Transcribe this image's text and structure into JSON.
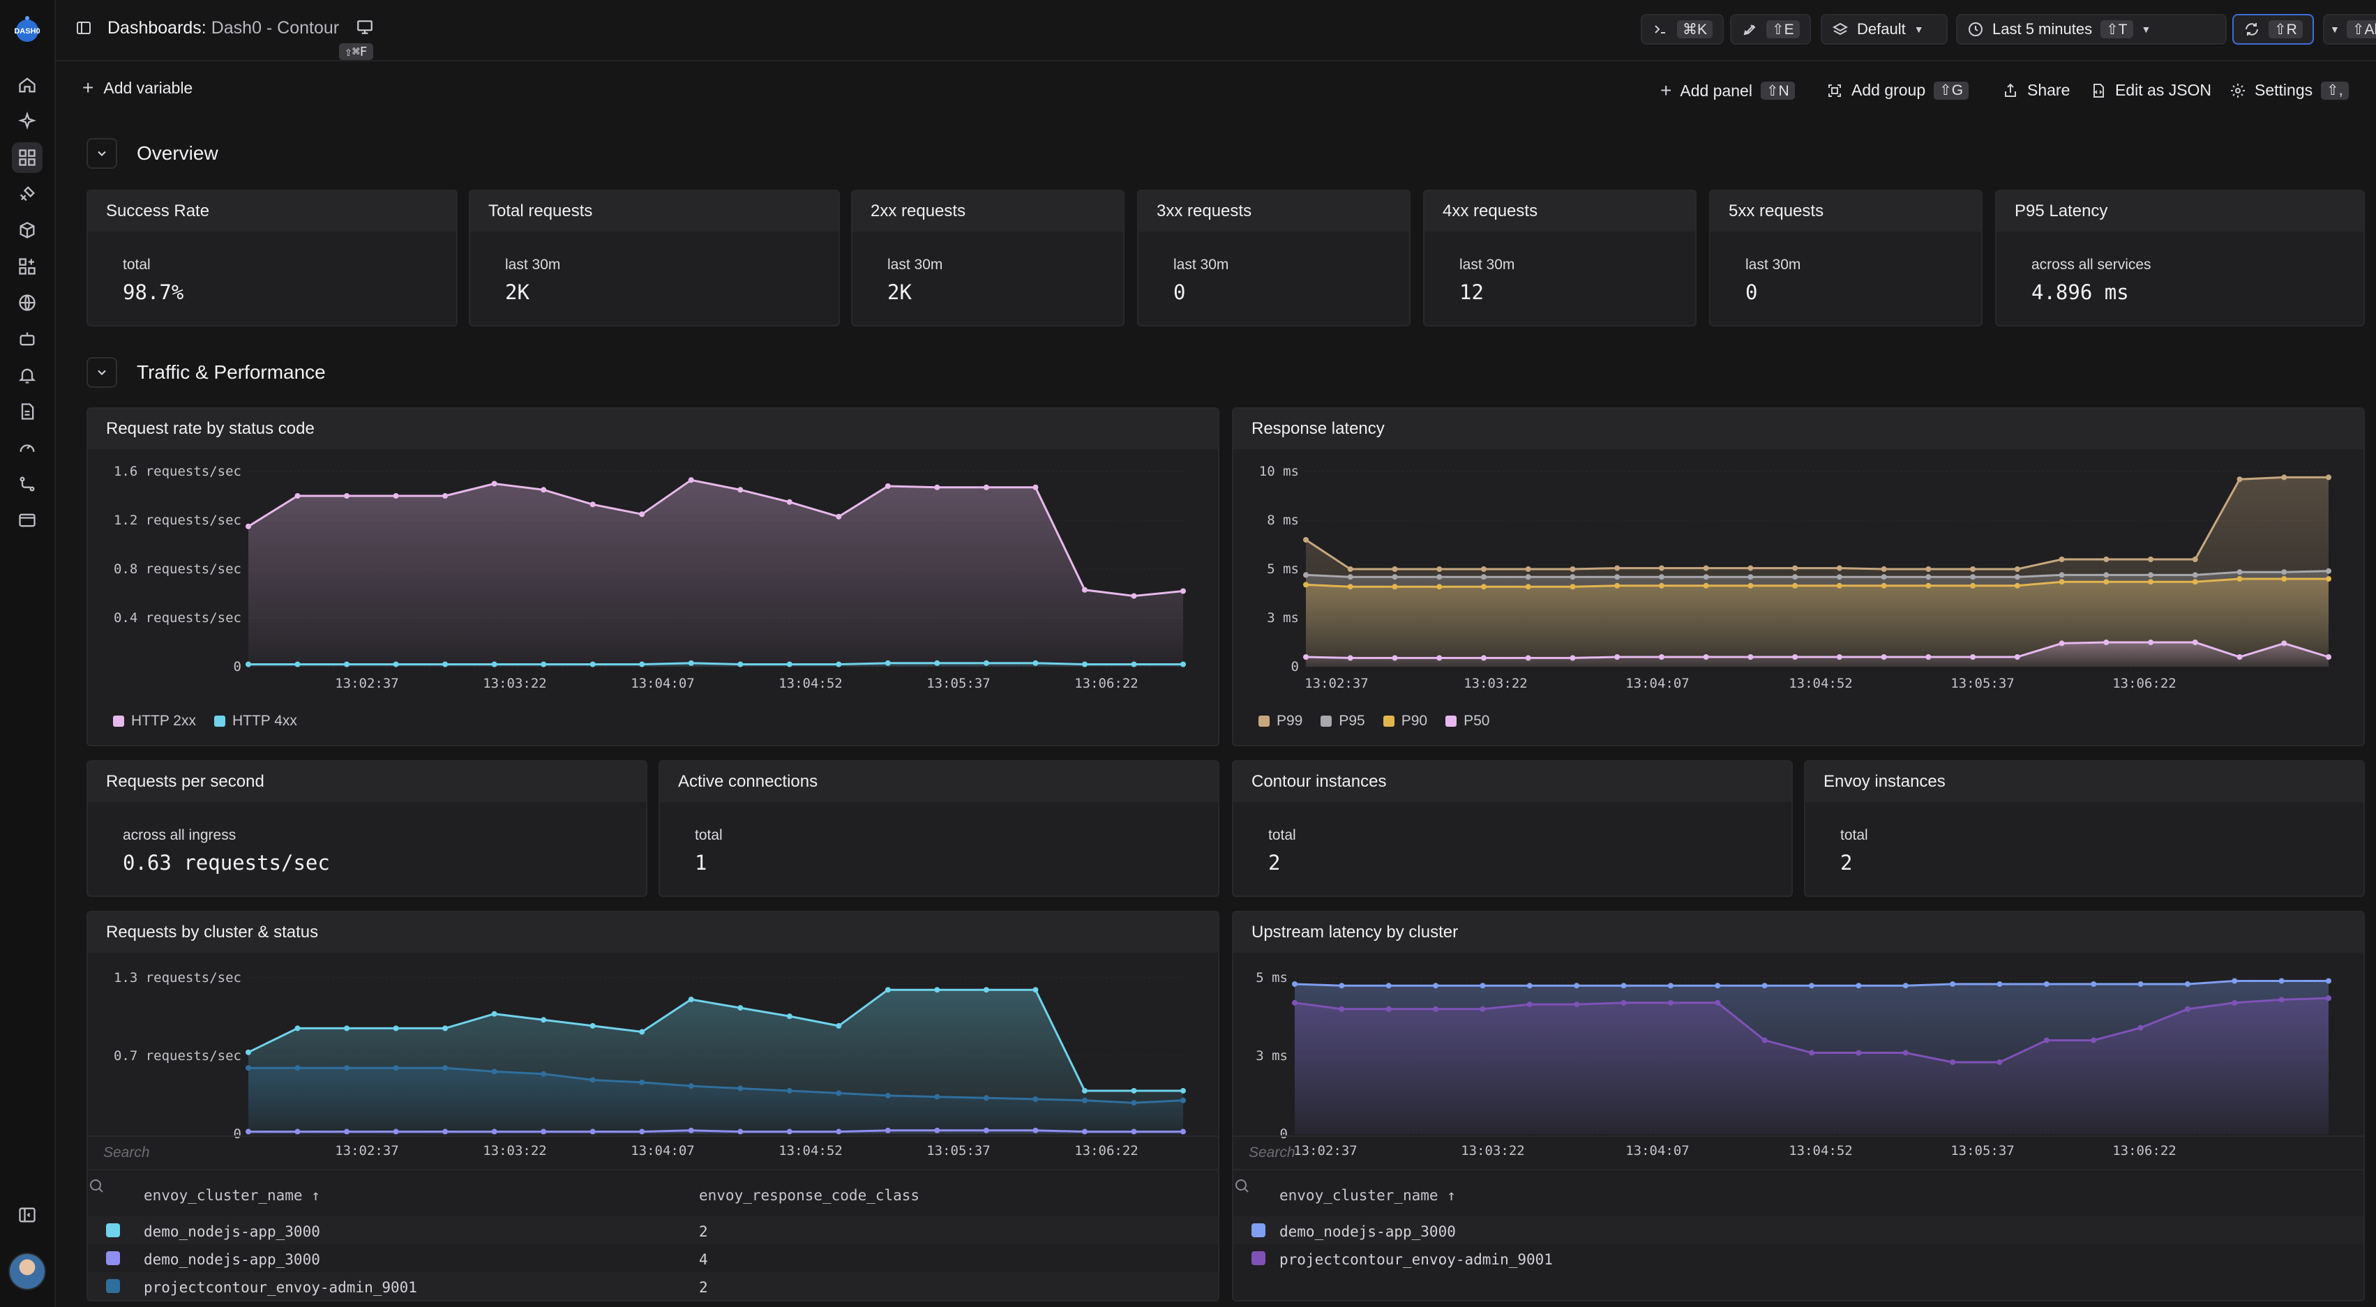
{
  "breadcrumb": {
    "prefix": "Dashboards:",
    "name": "Dash0 - Contour",
    "shortcut": "⇧⌘F"
  },
  "topbar": {
    "terminal_kbd": "⌘K",
    "rocket_kbd": "⇧E",
    "dataset": "Default",
    "time_range": "Last 5 minutes",
    "time_kbd": "⇧T",
    "refresh_kbd": "⇧R",
    "auto_refresh_kbd": "⇧Alt+R"
  },
  "toolbar": {
    "add_variable": "Add variable",
    "add_panel": "Add panel",
    "add_panel_kbd": "⇧N",
    "add_group": "Add group",
    "add_group_kbd": "⇧G",
    "share": "Share",
    "edit_json": "Edit as JSON",
    "settings": "Settings",
    "settings_kbd": "⇧,"
  },
  "sections": {
    "overview": "Overview",
    "traffic": "Traffic & Performance"
  },
  "stats": [
    {
      "title": "Success Rate",
      "sub": "total",
      "value": "98.7%"
    },
    {
      "title": "Total requests",
      "sub": "last 30m",
      "value": "2K"
    },
    {
      "title": "2xx requests",
      "sub": "last 30m",
      "value": "2K"
    },
    {
      "title": "3xx requests",
      "sub": "last 30m",
      "value": "0"
    },
    {
      "title": "4xx requests",
      "sub": "last 30m",
      "value": "12"
    },
    {
      "title": "5xx requests",
      "sub": "last 30m",
      "value": "0"
    },
    {
      "title": "P95 Latency",
      "sub": "across all services",
      "value": "4.896",
      "unit": "ms"
    }
  ],
  "stats2": [
    {
      "title": "Requests per second",
      "sub": "across all ingress",
      "value": "0.63",
      "unit": "requests/sec"
    },
    {
      "title": "Active connections",
      "sub": "total",
      "value": "1"
    },
    {
      "title": "Contour instances",
      "sub": "total",
      "value": "2"
    },
    {
      "title": "Envoy instances",
      "sub": "total",
      "value": "2"
    }
  ],
  "chart_data": [
    {
      "title": "Request rate by status code",
      "type": "area",
      "x_ticks": [
        "13:02:37",
        "13:03:22",
        "13:04:07",
        "13:04:52",
        "13:05:37",
        "13:06:22"
      ],
      "y_ticks": [
        "0",
        "0.4 requests/sec",
        "0.8 requests/sec",
        "1.2 requests/sec",
        "1.6 requests/sec"
      ],
      "ylim": [
        0,
        1.6
      ],
      "series": [
        {
          "name": "HTTP 2xx",
          "color": "#e8b9ec",
          "values": [
            1.15,
            1.4,
            1.4,
            1.4,
            1.4,
            1.5,
            1.45,
            1.33,
            1.25,
            1.53,
            1.45,
            1.35,
            1.23,
            1.48,
            1.47,
            1.47,
            1.47,
            0.63,
            0.58,
            0.62
          ]
        },
        {
          "name": "HTTP 4xx",
          "color": "#6fd3ec",
          "values": [
            0.02,
            0.02,
            0.02,
            0.02,
            0.02,
            0.02,
            0.02,
            0.02,
            0.02,
            0.03,
            0.02,
            0.02,
            0.02,
            0.03,
            0.03,
            0.03,
            0.03,
            0.02,
            0.02,
            0.02
          ]
        }
      ]
    },
    {
      "title": "Response latency",
      "type": "line",
      "x_ticks": [
        "13:02:37",
        "13:03:22",
        "13:04:07",
        "13:04:52",
        "13:05:37",
        "13:06:22"
      ],
      "y_ticks": [
        "0",
        "3 ms",
        "5 ms",
        "8 ms",
        "10 ms"
      ],
      "ylim": [
        0,
        10
      ],
      "series": [
        {
          "name": "P99",
          "color": "#c7a77f",
          "values": [
            6.5,
            5,
            5,
            5,
            5,
            5,
            5,
            5.05,
            5.05,
            5.05,
            5.05,
            5.05,
            5.05,
            5,
            5,
            5,
            5,
            5.5,
            5.5,
            5.5,
            5.5,
            9.6,
            9.7,
            9.7
          ]
        },
        {
          "name": "P95",
          "color": "#a8a8ad",
          "values": [
            4.7,
            4.6,
            4.6,
            4.6,
            4.6,
            4.6,
            4.6,
            4.6,
            4.6,
            4.6,
            4.6,
            4.6,
            4.6,
            4.6,
            4.6,
            4.6,
            4.6,
            4.7,
            4.7,
            4.7,
            4.7,
            4.85,
            4.85,
            4.9
          ]
        },
        {
          "name": "P90",
          "color": "#e3b54e",
          "values": [
            4.2,
            4.1,
            4.1,
            4.1,
            4.1,
            4.1,
            4.1,
            4.15,
            4.15,
            4.15,
            4.15,
            4.15,
            4.15,
            4.15,
            4.15,
            4.15,
            4.15,
            4.35,
            4.35,
            4.35,
            4.35,
            4.5,
            4.5,
            4.5
          ]
        },
        {
          "name": "P50",
          "color": "#e7b9f0",
          "values": [
            0.5,
            0.45,
            0.45,
            0.45,
            0.45,
            0.45,
            0.45,
            0.5,
            0.5,
            0.5,
            0.5,
            0.5,
            0.5,
            0.5,
            0.5,
            0.5,
            0.5,
            1.2,
            1.25,
            1.25,
            1.25,
            0.5,
            1.2,
            0.5
          ]
        }
      ]
    },
    {
      "title": "Requests by cluster & status",
      "type": "area",
      "x_ticks": [
        "13:02:37",
        "13:03:22",
        "13:04:07",
        "13:04:52",
        "13:05:37",
        "13:06:22"
      ],
      "y_ticks": [
        "0",
        "0.7 requests/sec",
        "1.3 requests/sec"
      ],
      "ylim": [
        0,
        1.3
      ],
      "series": [
        {
          "name": "demo_nodejs-app_3000 / 2",
          "color": "#6fd3ec",
          "values": [
            0.68,
            0.88,
            0.88,
            0.88,
            0.88,
            1.0,
            0.95,
            0.9,
            0.85,
            1.12,
            1.05,
            0.98,
            0.9,
            1.2,
            1.2,
            1.2,
            1.2,
            0.36,
            0.36,
            0.36
          ]
        },
        {
          "name": "projectcontour_envoy-admin_9001 / 2",
          "color": "#2f6f9e",
          "values": [
            0.55,
            0.55,
            0.55,
            0.55,
            0.55,
            0.52,
            0.5,
            0.45,
            0.43,
            0.4,
            0.38,
            0.36,
            0.34,
            0.32,
            0.31,
            0.3,
            0.29,
            0.28,
            0.26,
            0.28
          ]
        },
        {
          "name": "demo_nodejs-app_3000 / 4",
          "color": "#8f8ff0",
          "values": [
            0.02,
            0.02,
            0.02,
            0.02,
            0.02,
            0.02,
            0.02,
            0.02,
            0.02,
            0.03,
            0.02,
            0.02,
            0.02,
            0.03,
            0.03,
            0.03,
            0.03,
            0.02,
            0.02,
            0.02
          ]
        }
      ]
    },
    {
      "title": "Upstream latency by cluster",
      "type": "line",
      "x_ticks": [
        "13:02:37",
        "13:03:22",
        "13:04:07",
        "13:04:52",
        "13:05:37",
        "13:06:22"
      ],
      "y_ticks": [
        "0",
        "3 ms",
        "5 ms"
      ],
      "ylim": [
        0,
        5
      ],
      "series": [
        {
          "name": "demo_nodejs-app_3000",
          "color": "#7f9ff0",
          "values": [
            4.8,
            4.75,
            4.75,
            4.75,
            4.75,
            4.75,
            4.75,
            4.75,
            4.75,
            4.75,
            4.75,
            4.75,
            4.75,
            4.75,
            4.8,
            4.8,
            4.8,
            4.8,
            4.8,
            4.8,
            4.9,
            4.9,
            4.9
          ]
        },
        {
          "name": "projectcontour_envoy-admin_9001",
          "color": "#7f52b8",
          "values": [
            4.2,
            4.0,
            4.0,
            4.0,
            4.0,
            4.15,
            4.15,
            4.2,
            4.2,
            4.2,
            3.0,
            2.6,
            2.6,
            2.6,
            2.3,
            2.3,
            3.0,
            3.0,
            3.4,
            4.0,
            4.2,
            4.3,
            4.35
          ]
        }
      ]
    }
  ],
  "tables": {
    "left": {
      "search": "Search",
      "headers": [
        "envoy_cluster_name ↑",
        "envoy_response_code_class"
      ],
      "rows": [
        {
          "color": "#6fd3ec",
          "name": "demo_nodejs-app_3000",
          "cls": "2"
        },
        {
          "color": "#8f8ff0",
          "name": "demo_nodejs-app_3000",
          "cls": "4"
        },
        {
          "color": "#2f6f9e",
          "name": "projectcontour_envoy-admin_9001",
          "cls": "2"
        }
      ]
    },
    "right": {
      "search": "Search",
      "headers": [
        "envoy_cluster_name ↑"
      ],
      "rows": [
        {
          "color": "#7f9ff0",
          "name": "demo_nodejs-app_3000"
        },
        {
          "color": "#7f52b8",
          "name": "projectcontour_envoy-admin_9001"
        }
      ]
    }
  },
  "sidebar": {
    "icons": [
      "home-icon",
      "sparkle-icon",
      "dashboard-icon",
      "satellite-icon",
      "cube-icon",
      "services-icon",
      "globe-icon",
      "bot-icon",
      "bell-icon",
      "logs-icon",
      "gauge-icon",
      "route-icon",
      "window-icon"
    ]
  }
}
